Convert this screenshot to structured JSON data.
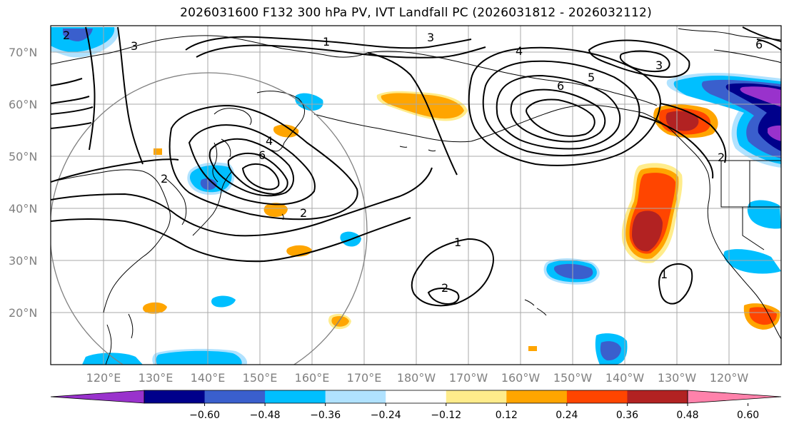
{
  "title": "2026031600 F132 300 hPa PV, IVT Landfall PC (2026031812 - 2026032112)",
  "lat_labels": [
    "70°N",
    "60°N",
    "50°N",
    "40°N",
    "30°N",
    "20°N"
  ],
  "lon_labels": [
    "120°E",
    "130°E",
    "140°E",
    "150°E",
    "160°E",
    "170°E",
    "180°W",
    "170°W",
    "160°W",
    "150°W",
    "140°W",
    "130°W",
    "120°W"
  ],
  "contour_labels": [
    "1",
    "3",
    "3",
    "4",
    "5",
    "6",
    "3",
    "2",
    "4",
    "6",
    "2",
    "2",
    "1",
    "2",
    "1",
    "2",
    "6"
  ],
  "colorbar": {
    "tick_labels": [
      "−0.60",
      "−0.48",
      "−0.36",
      "−0.24",
      "−0.12",
      "0.12",
      "0.24",
      "0.36",
      "0.48",
      "0.60"
    ],
    "colors": [
      "#9932cc",
      "#00008b",
      "#3a5fcd",
      "#00bfff",
      "#b0e2ff",
      "#ffffff",
      "#ffec8b",
      "#ffa500",
      "#ff4500",
      "#b22222",
      "#ff82ab"
    ]
  },
  "shading_colors": {
    "light_yellow": "#ffec8b",
    "orange": "#ffa500",
    "red_orange": "#ff4500",
    "dark_red": "#b22222",
    "light_blue": "#b0e2ff",
    "cyan": "#00bfff",
    "blue": "#3a5fcd",
    "navy": "#00008b",
    "purple": "#9932cc"
  }
}
